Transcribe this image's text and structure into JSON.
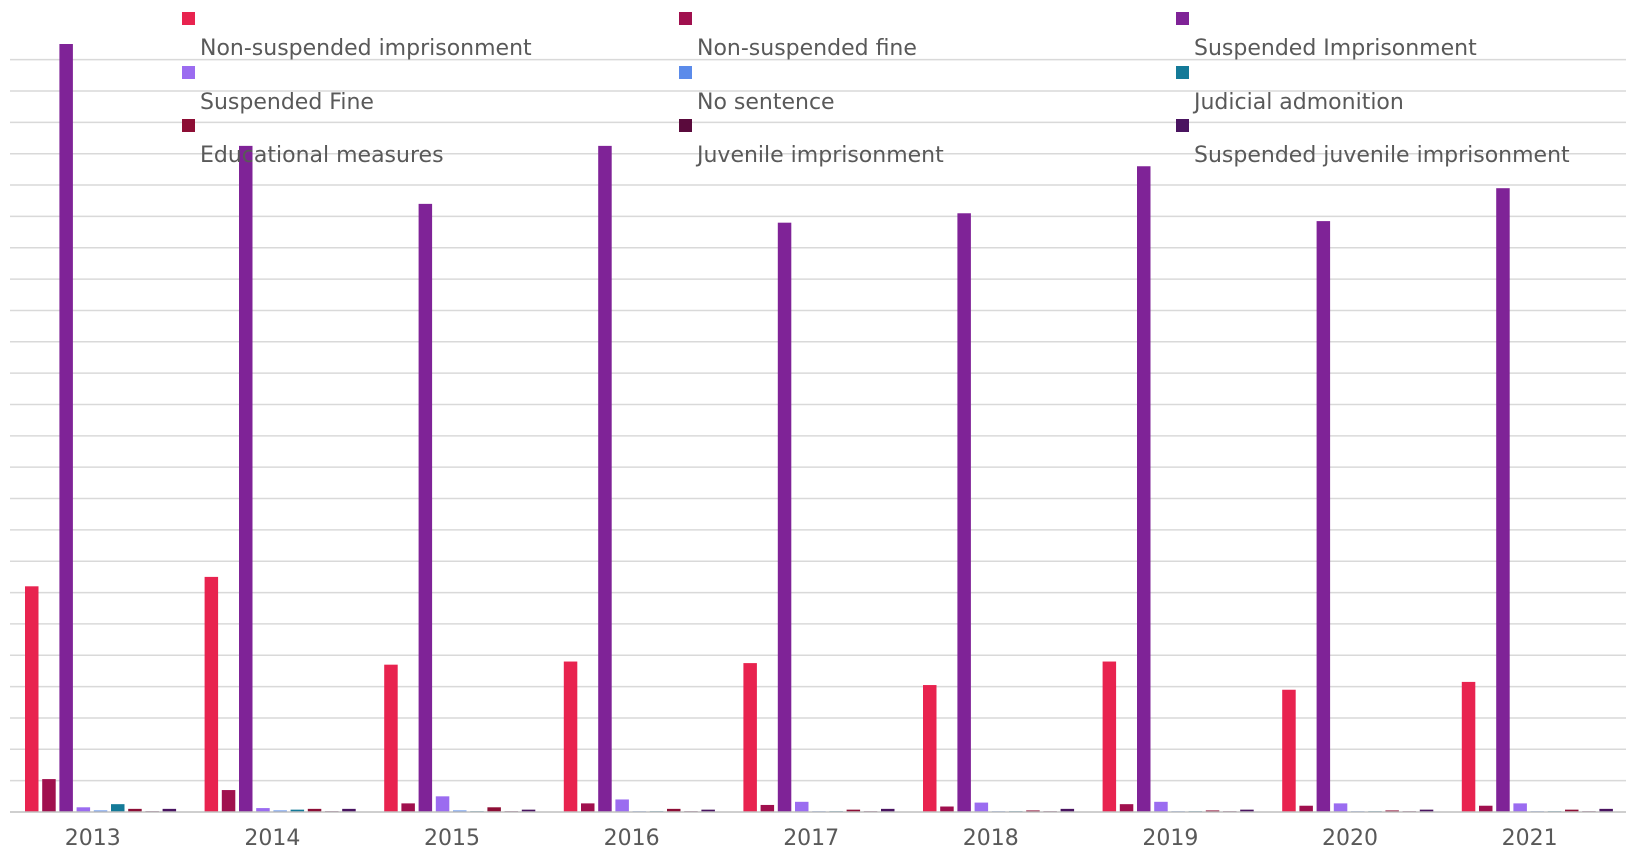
{
  "chart_data": {
    "type": "bar",
    "title": "",
    "xlabel": "",
    "ylabel": "",
    "ylim": [
      0,
      49
    ],
    "y_gridline_step": 2,
    "categories": [
      "2013",
      "2014",
      "2015",
      "2016",
      "2017",
      "2018",
      "2019",
      "2020",
      "2021"
    ],
    "series": [
      {
        "name": "Non-suspended imprisonment",
        "color": "#E8234F",
        "values": [
          14.4,
          15.0,
          9.4,
          9.6,
          9.5,
          8.1,
          9.6,
          7.8,
          8.3
        ]
      },
      {
        "name": "Non-suspended fine",
        "color": "#A0104E",
        "values": [
          2.1,
          1.4,
          0.55,
          0.55,
          0.45,
          0.35,
          0.5,
          0.4,
          0.4
        ]
      },
      {
        "name": "Suspended Imprisonment",
        "color": "#7F2397",
        "values": [
          49.0,
          42.5,
          38.8,
          42.5,
          37.6,
          38.2,
          41.2,
          37.7,
          39.8
        ]
      },
      {
        "name": "Suspended Fine",
        "color": "#9B6CF0",
        "values": [
          0.3,
          0.25,
          1.0,
          0.8,
          0.65,
          0.6,
          0.65,
          0.55,
          0.55
        ]
      },
      {
        "name": "No sentence",
        "color": "#5B8BEA",
        "values": [
          0.1,
          0.1,
          0.1,
          0.05,
          0.05,
          0.05,
          0.05,
          0.05,
          0.05
        ]
      },
      {
        "name": "Judicial admonition",
        "color": "#147A98",
        "values": [
          0.5,
          0.15,
          0.05,
          0.05,
          0.05,
          0.05,
          0.05,
          0.05,
          0.05
        ]
      },
      {
        "name": "Educational measures",
        "color": "#8D0E35",
        "values": [
          0.2,
          0.2,
          0.3,
          0.2,
          0.15,
          0.1,
          0.1,
          0.1,
          0.15
        ]
      },
      {
        "name": "Juvenile imprisonment",
        "color": "#5A0A3C",
        "values": [
          0.05,
          0.05,
          0.05,
          0.05,
          0.05,
          0.05,
          0.05,
          0.05,
          0.05
        ]
      },
      {
        "name": "Suspended juvenile imprisonment",
        "color": "#4A1460",
        "values": [
          0.2,
          0.2,
          0.15,
          0.15,
          0.2,
          0.2,
          0.15,
          0.15,
          0.2
        ]
      }
    ],
    "grid": true,
    "gridline_color": "#D9D9D9",
    "axis_color": "#BFBFBF",
    "legend": {
      "position": "top",
      "columns": 3
    }
  }
}
